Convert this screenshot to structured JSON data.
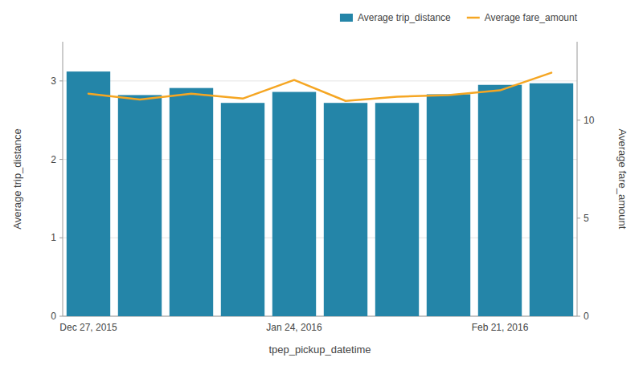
{
  "chart_data": {
    "type": "bar",
    "categories": [
      "Dec 27, 2015",
      null,
      null,
      null,
      "Jan 24, 2016",
      null,
      null,
      null,
      "Feb 21, 2016",
      null
    ],
    "series": [
      {
        "name": "Average trip_distance",
        "type": "bar",
        "color": "#2485A8",
        "values": [
          3.12,
          2.82,
          2.91,
          2.72,
          2.86,
          2.72,
          2.72,
          2.83,
          2.95,
          2.97
        ]
      },
      {
        "name": "Average fare_amount",
        "type": "line",
        "color": "#F5A623",
        "axis": "y2",
        "values": [
          11.35,
          11.05,
          11.35,
          11.1,
          12.05,
          10.98,
          11.2,
          11.28,
          11.52,
          12.42
        ]
      }
    ],
    "x_label": "tpep_pickup_datetime",
    "y_label": "Average trip_distance",
    "y2_label": "Average fare_amount",
    "ylim": [
      0,
      3.5
    ],
    "yticks": [
      0,
      1,
      2,
      3
    ],
    "y2lim": [
      0,
      14
    ],
    "y2ticks": [
      0,
      5,
      10
    ],
    "grid": true,
    "legend": "upper right"
  }
}
